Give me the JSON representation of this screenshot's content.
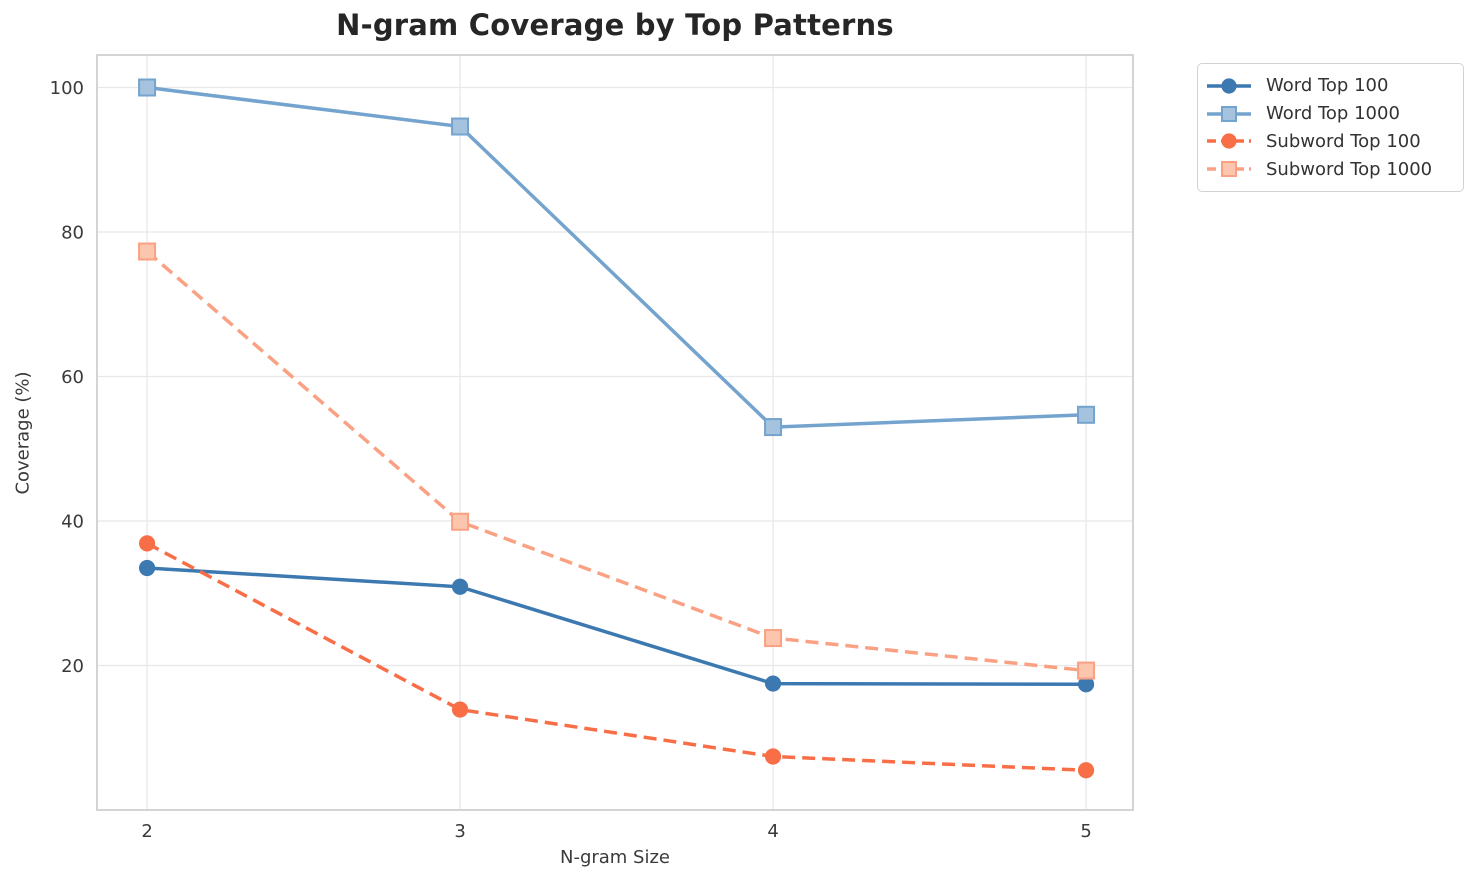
{
  "chart_data": {
    "type": "line",
    "title": "N-gram Coverage by Top Patterns",
    "xlabel": "N-gram Size",
    "ylabel": "Coverage (%)",
    "x": [
      2,
      3,
      4,
      5
    ],
    "xticks": [
      "2",
      "3",
      "4",
      "5"
    ],
    "yticks": [
      20,
      40,
      60,
      80,
      100
    ],
    "xlim": [
      1.84,
      5.15
    ],
    "ylim": [
      0,
      104.5
    ],
    "grid": true,
    "legend_position": "outside-upper-right",
    "series": [
      {
        "name": "Word Top 100",
        "values": [
          33.5,
          30.9,
          17.5,
          17.4
        ],
        "color": "#3c79b0",
        "marker": "circle",
        "marker_fill": "#3c79b0",
        "line_style": "solid"
      },
      {
        "name": "Word Top 1000",
        "values": [
          100.0,
          94.6,
          53.0,
          54.7
        ],
        "color": "#74a3ce",
        "marker": "square",
        "marker_fill": "#a5c3de",
        "line_style": "solid"
      },
      {
        "name": "Subword Top 100",
        "values": [
          36.9,
          13.9,
          7.4,
          5.5
        ],
        "color": "#f86f47",
        "marker": "circle",
        "marker_fill": "#f86f47",
        "line_style": "dashed"
      },
      {
        "name": "Subword Top 1000",
        "values": [
          77.3,
          39.9,
          23.8,
          19.3
        ],
        "color": "#fba183",
        "marker": "square",
        "marker_fill": "#fcc5ad",
        "line_style": "dashed"
      }
    ],
    "colors": {
      "grid": "#e8e8e8",
      "spine": "#cfcfcf",
      "title_text": "#262626",
      "axis_text": "#3a3a3a",
      "tick_text": "#3a3a3a",
      "legend_text": "#333333"
    }
  }
}
